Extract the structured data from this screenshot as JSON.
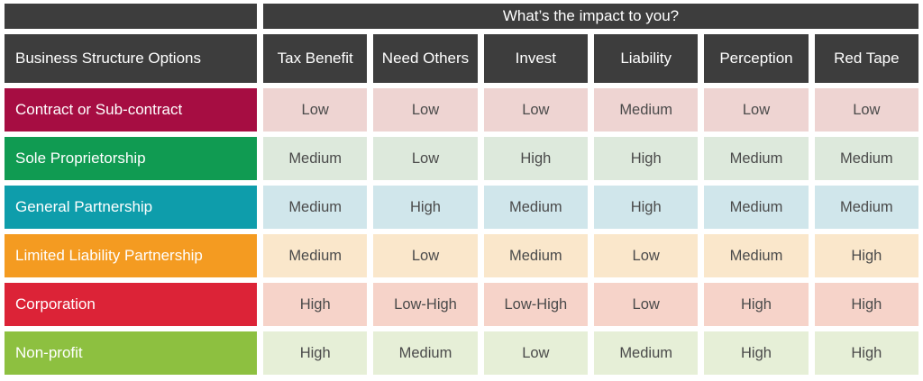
{
  "chart_data": {
    "type": "table",
    "title": "What’s the impact to you?",
    "corner_label": "Business Structure Options",
    "columns": [
      "Tax Benefit",
      "Need Others",
      "Invest",
      "Liability",
      "Perception",
      "Red Tape"
    ],
    "rows": [
      {
        "label": "Contract or Sub-contract",
        "label_bg": "#a60d42",
        "cell_bg": "#eed4d2",
        "values": [
          "Low",
          "Low",
          "Low",
          "Medium",
          "Low",
          "Low"
        ]
      },
      {
        "label": "Sole Proprietorship",
        "label_bg": "#109b52",
        "cell_bg": "#dde9dc",
        "values": [
          "Medium",
          "Low",
          "High",
          "High",
          "Medium",
          "Medium"
        ]
      },
      {
        "label": "General Partnership",
        "label_bg": "#0e9dab",
        "cell_bg": "#d0e6eb",
        "values": [
          "Medium",
          "High",
          "Medium",
          "High",
          "Medium",
          "Medium"
        ]
      },
      {
        "label": "Limited Liability Partnership",
        "label_bg": "#f49b21",
        "cell_bg": "#fae7cb",
        "values": [
          "Medium",
          "Low",
          "Medium",
          "Low",
          "Medium",
          "High"
        ]
      },
      {
        "label": "Corporation",
        "label_bg": "#dc2337",
        "cell_bg": "#f6d3c9",
        "values": [
          "High",
          "Low-High",
          "Low-High",
          "Low",
          "High",
          "High"
        ]
      },
      {
        "label": "Non-profit",
        "label_bg": "#8dc040",
        "cell_bg": "#e6efd7",
        "values": [
          "High",
          "Medium",
          "Low",
          "Medium",
          "High",
          "High"
        ]
      }
    ]
  },
  "colors": {
    "header_bg": "#3d3d3d",
    "header_text": "#ffffff",
    "value_text": "#4a4a4a",
    "page_bg": "#ffffff"
  }
}
